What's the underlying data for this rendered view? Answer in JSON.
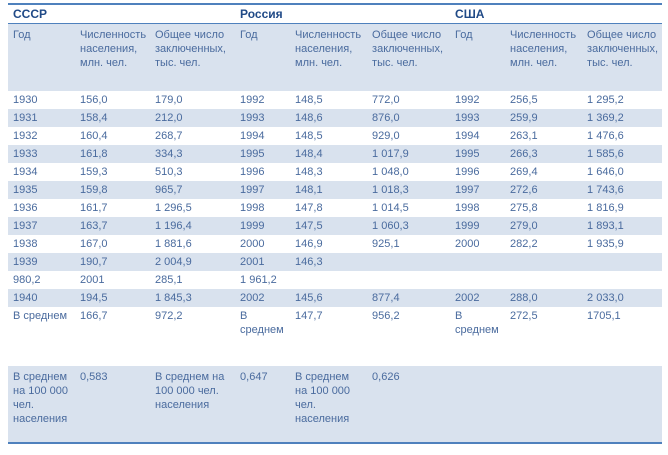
{
  "colors": {
    "accent_border": "#4f81bd",
    "band_fill": "#d9e2ee",
    "body_text": "#4a6b9e",
    "section_text": "#204a87"
  },
  "table": {
    "sections": [
      "СССР",
      "Россия",
      "США"
    ],
    "headers": [
      "Год",
      "Численность населения, млн. чел.",
      "Общее число заключенных, тыс. чел.",
      "Год",
      "Численность населения, млн. чел.",
      "Общее число заключенных, тыс. чел.",
      "Год",
      "Численность населения, млн. чел.",
      "Общее число заключенных, тыс. чел."
    ],
    "rows": [
      {
        "type": "data",
        "shaded": false,
        "cells": [
          "1930",
          "156,0",
          "179,0",
          "1992",
          "148,5",
          "772,0",
          "1992",
          "256,5",
          "1 295,2"
        ]
      },
      {
        "type": "data",
        "shaded": true,
        "cells": [
          "1931",
          "158,4",
          "212,0",
          "1993",
          "148,6",
          "876,0",
          "1993",
          "259,9",
          "1 369,2"
        ]
      },
      {
        "type": "data",
        "shaded": false,
        "cells": [
          "1932",
          "160,4",
          "268,7",
          "1994",
          "148,5",
          "929,0",
          "1994",
          "263,1",
          "1 476,6"
        ]
      },
      {
        "type": "data",
        "shaded": true,
        "cells": [
          "1933",
          "161,8",
          "334,3",
          "1995",
          "148,4",
          "1 017,9",
          "1995",
          "266,3",
          "1 585,6"
        ]
      },
      {
        "type": "data",
        "shaded": false,
        "cells": [
          "1934",
          "159,3",
          "510,3",
          "1996",
          "148,3",
          "1 048,0",
          "1996",
          "269,4",
          "1 646,0"
        ]
      },
      {
        "type": "data",
        "shaded": true,
        "cells": [
          "1935",
          "159,8",
          "965,7",
          "1997",
          "148,1",
          "1 018,3",
          "1997",
          "272,6",
          "1 743,6"
        ]
      },
      {
        "type": "data",
        "shaded": false,
        "cells": [
          "1936",
          "161,7",
          "1 296,5",
          "1998",
          "147,8",
          "1 014,5",
          "1998",
          "275,8",
          "1 816,9"
        ]
      },
      {
        "type": "data",
        "shaded": true,
        "cells": [
          "1937",
          "163,7",
          "1 196,4",
          "1999",
          "147,5",
          "1 060,3",
          "1999",
          "279,0",
          "1 893,1"
        ]
      },
      {
        "type": "data",
        "shaded": false,
        "cells": [
          "1938",
          "167,0",
          "1 881,6",
          "2000",
          "146,9",
          "925,1",
          "2000",
          "282,2",
          "1 935,9"
        ]
      },
      {
        "type": "data",
        "shaded": true,
        "cells": [
          "1939",
          "190,7",
          "2 004,9",
          "2001",
          "146,3",
          "",
          "",
          "",
          ""
        ]
      },
      {
        "type": "data",
        "shaded": false,
        "cells": [
          "980,2",
          "2001",
          "285,1",
          "1 961,2",
          "",
          "",
          "",
          "",
          ""
        ]
      },
      {
        "type": "data",
        "shaded": true,
        "cells": [
          "1940",
          "194,5",
          "1 845,3",
          "2002",
          "145,6",
          "877,4",
          "2002",
          "288,0",
          "2 033,0"
        ]
      },
      {
        "type": "avg",
        "shaded": false,
        "cells": [
          "В среднем",
          "166,7",
          "972,2",
          "В среднем",
          "147,7",
          "956,2",
          "В среднем",
          "272,5",
          "1705,1"
        ]
      },
      {
        "type": "spacer",
        "shaded": false,
        "cells": [
          "",
          "",
          "",
          "",
          "",
          "",
          "",
          "",
          ""
        ]
      },
      {
        "type": "footer",
        "shaded": true,
        "cells": [
          "В среднем на 100 000 чел. населения",
          "0,583",
          "В среднем на 100 000 чел. населения",
          "0,647",
          "В среднем на 100 000 чел. населения",
          "0,626",
          "",
          "",
          ""
        ]
      }
    ]
  }
}
